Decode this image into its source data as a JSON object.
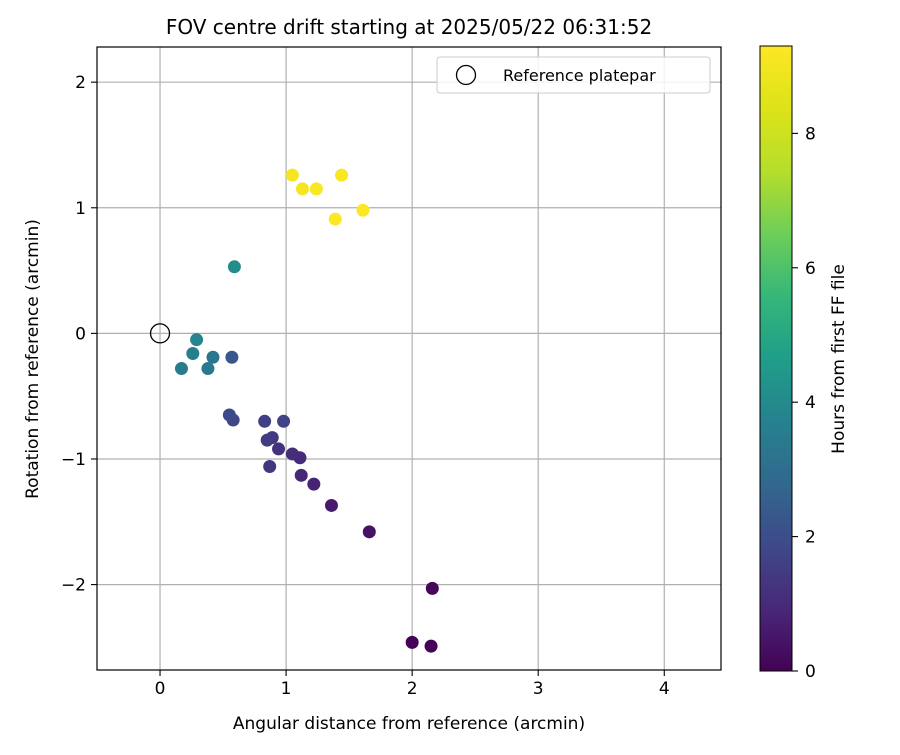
{
  "chart_data": {
    "type": "scatter",
    "title": "FOV centre drift starting at 2025/05/22 06:31:52",
    "xlabel": "Angular distance from reference (arcmin)",
    "ylabel": "Rotation from reference (arcmin)",
    "xlim": [
      -0.5,
      4.45
    ],
    "ylim": [
      -2.68,
      2.28
    ],
    "xticks": [
      0,
      1,
      2,
      3,
      4
    ],
    "xtick_labels": [
      "0",
      "1",
      "2",
      "3",
      "4"
    ],
    "yticks": [
      2,
      1,
      0,
      -1,
      -2
    ],
    "ytick_labels": [
      "2",
      "1",
      "0",
      "−1",
      "−2"
    ],
    "grid": true,
    "legend": {
      "placement": "top-right",
      "entries": [
        "Reference platepar"
      ]
    },
    "reference_point": {
      "x": 0,
      "y": 0
    },
    "colorbar": {
      "label": "Hours from first FF file",
      "range": [
        0,
        9.3
      ],
      "ticks": [
        0,
        2,
        4,
        6,
        8
      ],
      "tick_labels": [
        "0",
        "2",
        "4",
        "6",
        "8"
      ],
      "colormap": "viridis"
    },
    "points": [
      {
        "x": 2.0,
        "y": -2.46,
        "c": 0.05
      },
      {
        "x": 2.15,
        "y": -2.49,
        "c": 0.1
      },
      {
        "x": 2.16,
        "y": -2.03,
        "c": 0.15
      },
      {
        "x": 1.66,
        "y": -1.58,
        "c": 0.4
      },
      {
        "x": 1.36,
        "y": -1.37,
        "c": 0.6
      },
      {
        "x": 1.22,
        "y": -1.2,
        "c": 0.8
      },
      {
        "x": 1.12,
        "y": -1.13,
        "c": 0.9
      },
      {
        "x": 1.11,
        "y": -0.99,
        "c": 1.0
      },
      {
        "x": 1.05,
        "y": -0.96,
        "c": 1.1
      },
      {
        "x": 0.94,
        "y": -0.92,
        "c": 1.2
      },
      {
        "x": 0.87,
        "y": -1.06,
        "c": 1.3
      },
      {
        "x": 0.89,
        "y": -0.83,
        "c": 1.4
      },
      {
        "x": 0.85,
        "y": -0.85,
        "c": 1.5
      },
      {
        "x": 0.83,
        "y": -0.7,
        "c": 1.6
      },
      {
        "x": 0.98,
        "y": -0.7,
        "c": 1.7
      },
      {
        "x": 0.58,
        "y": -0.69,
        "c": 1.8
      },
      {
        "x": 0.55,
        "y": -0.65,
        "c": 1.9
      },
      {
        "x": 0.57,
        "y": -0.19,
        "c": 2.3
      },
      {
        "x": 0.42,
        "y": -0.19,
        "c": 3.3
      },
      {
        "x": 0.38,
        "y": -0.28,
        "c": 3.4
      },
      {
        "x": 0.17,
        "y": -0.28,
        "c": 3.5
      },
      {
        "x": 0.26,
        "y": -0.16,
        "c": 3.6
      },
      {
        "x": 0.29,
        "y": -0.05,
        "c": 3.8
      },
      {
        "x": 0.59,
        "y": 0.53,
        "c": 4.1
      },
      {
        "x": 1.05,
        "y": 1.26,
        "c": 9.1
      },
      {
        "x": 1.13,
        "y": 1.15,
        "c": 9.1
      },
      {
        "x": 1.24,
        "y": 1.15,
        "c": 9.2
      },
      {
        "x": 1.44,
        "y": 1.26,
        "c": 9.2
      },
      {
        "x": 1.39,
        "y": 0.91,
        "c": 9.25
      },
      {
        "x": 1.61,
        "y": 0.98,
        "c": 9.3
      }
    ]
  }
}
